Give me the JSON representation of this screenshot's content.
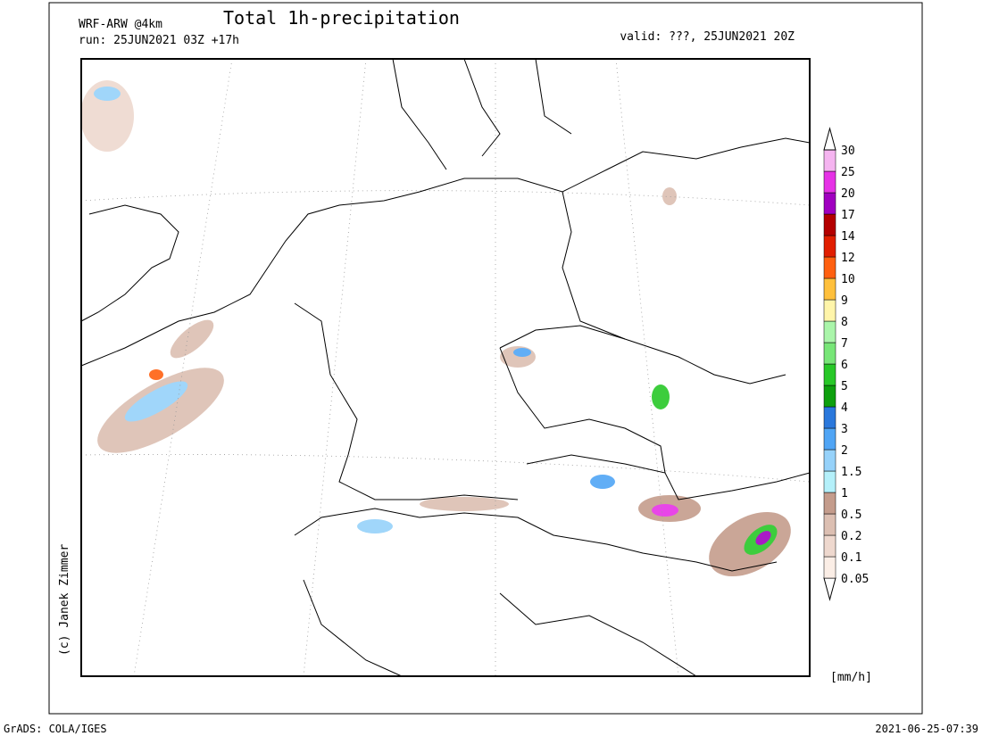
{
  "header": {
    "model": "WRF-ARW @4km",
    "title": "Total 1h-precipitation",
    "run": "run: 25JUN2021 03Z +17h",
    "valid": "valid: ???, 25JUN2021 20Z"
  },
  "credit": "(c) Janek Zimmer",
  "legend": {
    "unit": "[mm/h]",
    "levels": [
      "0.05",
      "0.1",
      "0.2",
      "0.5",
      "1",
      "1.5",
      "2",
      "3",
      "4",
      "5",
      "6",
      "7",
      "8",
      "9",
      "10",
      "12",
      "14",
      "17",
      "20",
      "25",
      "30"
    ],
    "colors": [
      "#ffffff",
      "#fbeee6",
      "#eed8ce",
      "#dcbfb2",
      "#c49c8c",
      "#b4f0fa",
      "#96d2fa",
      "#50a5f5",
      "#2a78dc",
      "#0ea00e",
      "#28c828",
      "#78e678",
      "#aaf5aa",
      "#fff5aa",
      "#ffc03c",
      "#ff6010",
      "#e11e00",
      "#b40000",
      "#a000c0",
      "#e632e6",
      "#f5b4f0",
      "#ffffff"
    ]
  },
  "footer": {
    "left": "GrADS: COLA/IGES",
    "right": "2021-06-25-07:39"
  }
}
